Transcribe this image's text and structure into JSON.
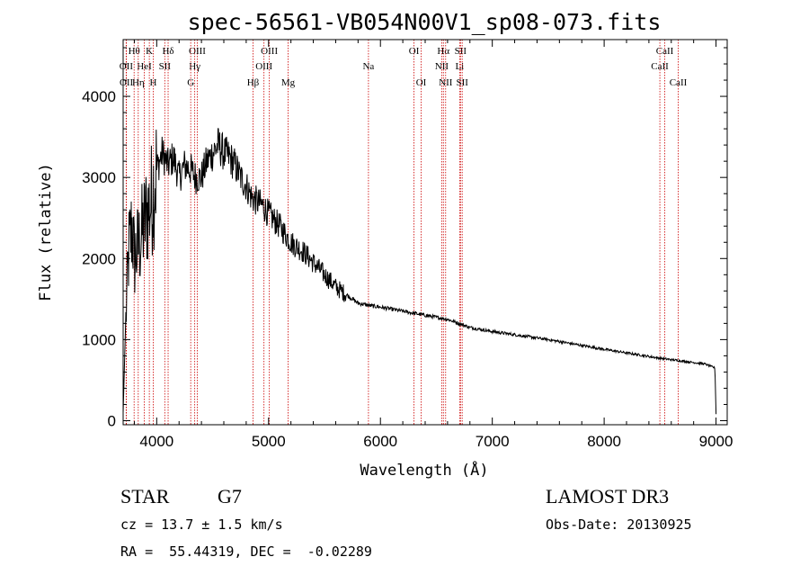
{
  "chart_data": {
    "type": "line",
    "title": "spec-56561-VB054N00V1_sp08-073.fits",
    "xlabel": "Wavelength (Å)",
    "ylabel": "Flux (relative)",
    "xlim": [
      3700,
      9100
    ],
    "ylim": [
      -50,
      4700
    ],
    "xticks": [
      4000,
      5000,
      6000,
      7000,
      8000,
      9000
    ],
    "yticks": [
      0,
      1000,
      2000,
      3000,
      4000
    ],
    "spectrum_anchors": {
      "wavelength": [
        3700,
        3720,
        3750,
        3780,
        3800,
        3850,
        3900,
        3950,
        4000,
        4050,
        4100,
        4150,
        4200,
        4250,
        4300,
        4350,
        4400,
        4450,
        4500,
        4550,
        4600,
        4650,
        4700,
        4750,
        4800,
        4850,
        4900,
        4950,
        5000,
        5100,
        5200,
        5300,
        5400,
        5500,
        5600,
        5700,
        5800,
        5900,
        6000,
        6200,
        6400,
        6600,
        6700,
        6800,
        7000,
        7500,
        8000,
        8500,
        8900,
        8990,
        9000
      ],
      "flux": [
        100,
        1100,
        2100,
        2400,
        2000,
        2200,
        2500,
        2700,
        3100,
        3300,
        3150,
        3250,
        3000,
        3150,
        3100,
        3000,
        3000,
        3200,
        3300,
        3400,
        3300,
        3250,
        3150,
        3000,
        2900,
        2750,
        2700,
        2650,
        2550,
        2400,
        2200,
        2100,
        1950,
        1800,
        1650,
        1550,
        1450,
        1420,
        1400,
        1350,
        1300,
        1250,
        1200,
        1150,
        1100,
        1000,
        880,
        770,
        700,
        650,
        80
      ]
    },
    "spectral_lines": [
      {
        "label": "Hθ",
        "wavelength": 3798,
        "row": 0
      },
      {
        "label": "OII",
        "wavelength": 3727,
        "row": 1
      },
      {
        "label": "OII",
        "wavelength": 3729,
        "row": 2
      },
      {
        "label": "K",
        "wavelength": 3934,
        "row": 0
      },
      {
        "label": "HeI",
        "wavelength": 3889,
        "row": 1
      },
      {
        "label": "Hη",
        "wavelength": 3835,
        "row": 2
      },
      {
        "label": "SII",
        "wavelength": 4072,
        "row": 1
      },
      {
        "label": "H",
        "wavelength": 3969,
        "row": 2
      },
      {
        "label": "Hδ",
        "wavelength": 4102,
        "row": 0
      },
      {
        "label": "OIII",
        "wavelength": 4363,
        "row": 0
      },
      {
        "label": "Hγ",
        "wavelength": 4340,
        "row": 1
      },
      {
        "label": "G",
        "wavelength": 4304,
        "row": 2
      },
      {
        "label": "Hβ",
        "wavelength": 4861,
        "row": 2
      },
      {
        "label": "OIII",
        "wavelength": 5007,
        "row": 0
      },
      {
        "label": "OIII",
        "wavelength": 4959,
        "row": 1
      },
      {
        "label": "Mg",
        "wavelength": 5175,
        "row": 2
      },
      {
        "label": "Na",
        "wavelength": 5893,
        "row": 1
      },
      {
        "label": "OI",
        "wavelength": 6300,
        "row": 0
      },
      {
        "label": "OI",
        "wavelength": 6364,
        "row": 2
      },
      {
        "label": "Hα",
        "wavelength": 6563,
        "row": 0
      },
      {
        "label": "NII",
        "wavelength": 6548,
        "row": 1
      },
      {
        "label": "NII",
        "wavelength": 6583,
        "row": 2
      },
      {
        "label": "SII",
        "wavelength": 6716,
        "row": 0
      },
      {
        "label": "Li",
        "wavelength": 6708,
        "row": 1
      },
      {
        "label": "SII",
        "wavelength": 6731,
        "row": 2
      },
      {
        "label": "CaII",
        "wavelength": 8542,
        "row": 0
      },
      {
        "label": "CaII",
        "wavelength": 8498,
        "row": 1
      },
      {
        "label": "CaII",
        "wavelength": 8662,
        "row": 2
      }
    ]
  },
  "info": {
    "object_class": "STAR",
    "subclass": "G7",
    "survey": "LAMOST DR3",
    "redshift": "cz = 13.7 ± 1.5 km/s",
    "obs_date": "Obs-Date: 20130925",
    "coords": "RA =  55.44319, DEC =  -0.02289"
  },
  "colors": {
    "line_marker": "#cc0000",
    "spectrum": "#000000"
  }
}
